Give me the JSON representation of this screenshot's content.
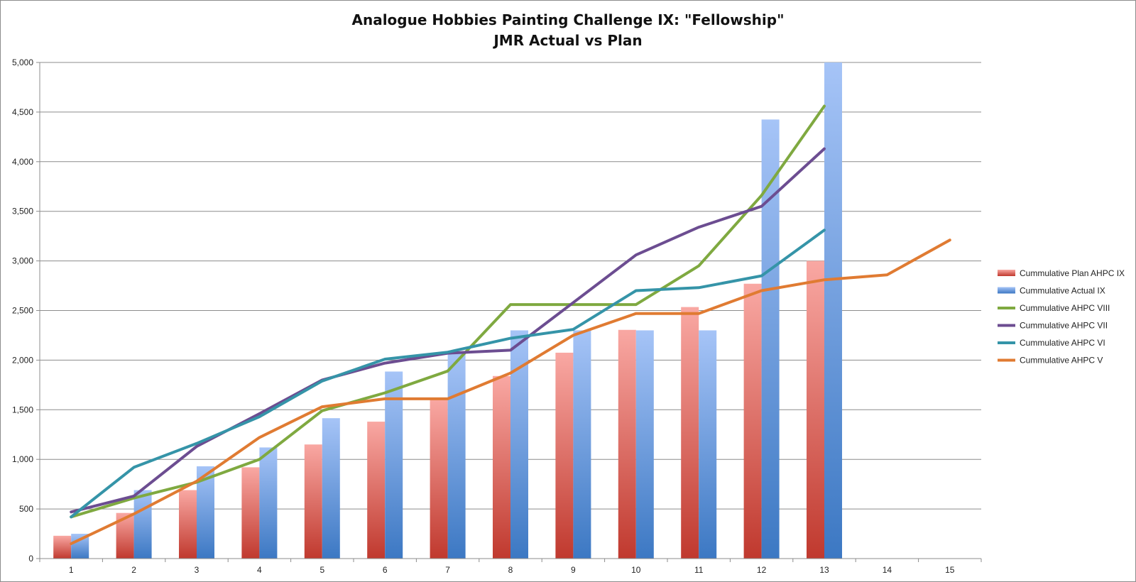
{
  "chart_data": {
    "type": "bar",
    "title": "Analogue Hobbies Painting Challenge IX: \"Fellowship\"",
    "subtitle": "JMR Actual vs Plan",
    "xlabel": "",
    "ylabel": "",
    "categories": [
      "1",
      "2",
      "3",
      "4",
      "5",
      "6",
      "7",
      "8",
      "9",
      "10",
      "11",
      "12",
      "13",
      "14",
      "15"
    ],
    "ylim": [
      0,
      5000
    ],
    "yticks": [
      0,
      500,
      1000,
      1500,
      2000,
      2500,
      3000,
      3500,
      4000,
      4500,
      5000
    ],
    "ytick_labels": [
      "0",
      "500",
      "1,000",
      "1,500",
      "2,000",
      "2,500",
      "3,000",
      "3,500",
      "4,000",
      "4,500",
      "5,000"
    ],
    "grid": true,
    "legend_position": "right",
    "bar_series": [
      {
        "name": "Cummulative Plan AHPC IX",
        "color_top": "#f9a8a3",
        "color_bottom": "#c0392e",
        "values": [
          230,
          460,
          690,
          920,
          1150,
          1380,
          1610,
          1840,
          2075,
          2305,
          2535,
          2770,
          3000,
          null,
          null
        ]
      },
      {
        "name": "Cummulative Actual IX",
        "color_top": "#a6c4f7",
        "color_bottom": "#3c78c3",
        "values": [
          250,
          690,
          930,
          1120,
          1415,
          1885,
          2080,
          2300,
          2300,
          2300,
          2300,
          4425,
          5000,
          null,
          null
        ]
      }
    ],
    "line_series": [
      {
        "name": "Cummulative  AHPC VIII",
        "color": "#7fa940",
        "values": [
          420,
          610,
          770,
          1000,
          1490,
          1670,
          1890,
          2560,
          2560,
          2560,
          2950,
          3660,
          4560,
          null,
          null
        ]
      },
      {
        "name": "Cummulative AHPC VII",
        "color": "#6c4d91",
        "values": [
          470,
          630,
          1130,
          1460,
          1800,
          1970,
          2070,
          2100,
          2580,
          3060,
          3340,
          3550,
          4130,
          null,
          null
        ]
      },
      {
        "name": "Cummulative AHPC VI",
        "color": "#3594a8",
        "values": [
          420,
          920,
          1160,
          1430,
          1790,
          2010,
          2080,
          2220,
          2310,
          2700,
          2730,
          2850,
          3310,
          null,
          null
        ]
      },
      {
        "name": "Cummulative AHPC V",
        "color": "#e07b32",
        "values": [
          150,
          450,
          780,
          1220,
          1530,
          1610,
          1610,
          1870,
          2250,
          2470,
          2470,
          2700,
          2810,
          2860,
          3210
        ]
      }
    ]
  }
}
